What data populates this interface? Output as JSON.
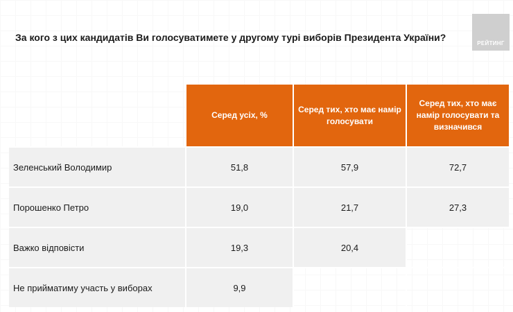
{
  "title": "За кого з цих кандидатів Ви голосуватимете у другому турі виборів Президента України?",
  "logo": "РЕЙТИНГ",
  "headers": [
    "Серед усіх, %",
    "Серед тих, хто має намір голосувати",
    "Серед тих, хто має намір голосувати та визначився"
  ],
  "rows": [
    {
      "label": "Зеленський Володимир",
      "v": [
        "51,8",
        "57,9",
        "72,7"
      ]
    },
    {
      "label": "Порошенко Петро",
      "v": [
        "19,0",
        "21,7",
        "27,3"
      ]
    },
    {
      "label": "Важко відповісти",
      "v": [
        "19,3",
        "20,4",
        ""
      ]
    },
    {
      "label": "Не прийматиму участь у виборах",
      "v": [
        "9,9",
        "",
        ""
      ]
    }
  ],
  "colors": {
    "accent": "#e2660e"
  }
}
